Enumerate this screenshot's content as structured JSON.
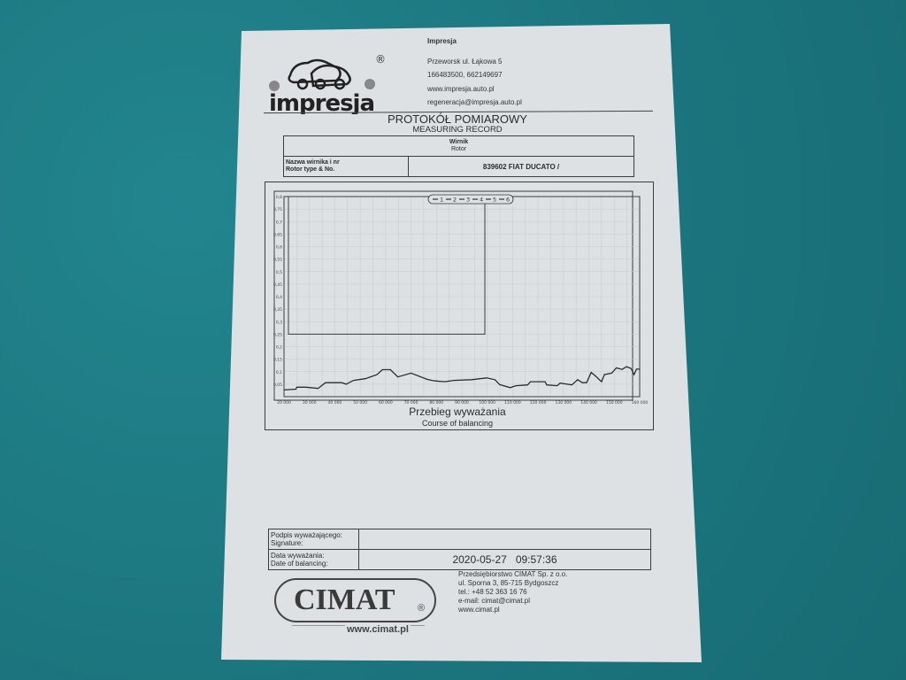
{
  "header": {
    "logo_text": "impresja",
    "company": "Impresja",
    "address": "Przeworsk ul. Łąkowa 5",
    "phones": "166483500, 662149697",
    "website": "www.impresja.auto.pl",
    "email": "regeneracja@impresja.auto.pl"
  },
  "title": {
    "pl": "PROTOKÓŁ POMIAROWY",
    "en": "MEASURING RECORD"
  },
  "rotor_table": {
    "header_pl": "Wirnik",
    "header_en": "Rotor",
    "label_pl": "Nazwa wirnika i nr",
    "label_en": "Rotor type & No.",
    "value": "839602 FIAT DUCATO /"
  },
  "chart_caption": {
    "pl": "Przebieg wyważania",
    "en": "Course of balancing"
  },
  "chart_data": {
    "type": "line",
    "legend": [
      "1",
      "2",
      "3",
      "4",
      "5",
      "6"
    ],
    "legend_placement": "top-center",
    "grid": true,
    "xlim": [
      20000,
      160000
    ],
    "ylim": [
      0,
      0.8
    ],
    "x_ticks": [
      "20 000",
      "30 000",
      "40 000",
      "50 000",
      "60 000",
      "70 000",
      "80 000",
      "90 000",
      "100 000",
      "110 000",
      "120 000",
      "130 000",
      "140 000",
      "150 000",
      "160 000"
    ],
    "y_ticks": [
      "0,8",
      "0,75",
      "0,7",
      "0,65",
      "0,6",
      "0,55",
      "0,5",
      "0,45",
      "0,4",
      "0,35",
      "0,3",
      "0,25",
      "0,2",
      "0,15",
      "0,1",
      "0,05"
    ],
    "series": [
      {
        "name": "1",
        "x": [
          20000,
          24700,
          25000,
          28700,
          33400,
          36300,
          42700,
          44500,
          47400,
          52000,
          56600,
          58700,
          61900,
          64800,
          70000,
          76400,
          79300,
          83400,
          86900,
          93900,
          99700,
          103000,
          104900,
          109000,
          111300,
          115900,
          117000,
          122800,
          123400,
          127500,
          128700,
          133300,
          135600,
          137400,
          139100,
          140900,
          142600,
          145000,
          146100,
          149000,
          150800,
          153100,
          154800,
          156600,
          157800,
          158700,
          160000
        ],
        "y": [
          0.027,
          0.03,
          0.038,
          0.038,
          0.033,
          0.056,
          0.056,
          0.05,
          0.065,
          0.072,
          0.088,
          0.108,
          0.108,
          0.079,
          0.094,
          0.069,
          0.063,
          0.06,
          0.065,
          0.068,
          0.075,
          0.068,
          0.048,
          0.036,
          0.044,
          0.047,
          0.06,
          0.06,
          0.047,
          0.044,
          0.054,
          0.047,
          0.068,
          0.056,
          0.056,
          0.097,
          0.083,
          0.06,
          0.088,
          0.094,
          0.115,
          0.109,
          0.12,
          0.113,
          0.088,
          0.11,
          0.11
        ]
      }
    ]
  },
  "footer_table": {
    "signature_pl": "Podpis wyważającego:",
    "signature_en": "Signature:",
    "signature_value": "",
    "date_pl": "Data wyważania:",
    "date_en": "Date of balancing:",
    "date_value": "2020-05-27   09:57:36"
  },
  "cimat": {
    "logo_text": "CIMAT",
    "logo_url": "www.cimat.pl",
    "lines": [
      "Przedsiębiorstwo CIMAT Sp. z o.o.",
      "ul. Sporna 3, 85-715 Bydgoszcz",
      "tel.: +48 52 363 16 76",
      "e-mail: cimat@cimat.pl",
      "www.cimat.pl"
    ]
  }
}
